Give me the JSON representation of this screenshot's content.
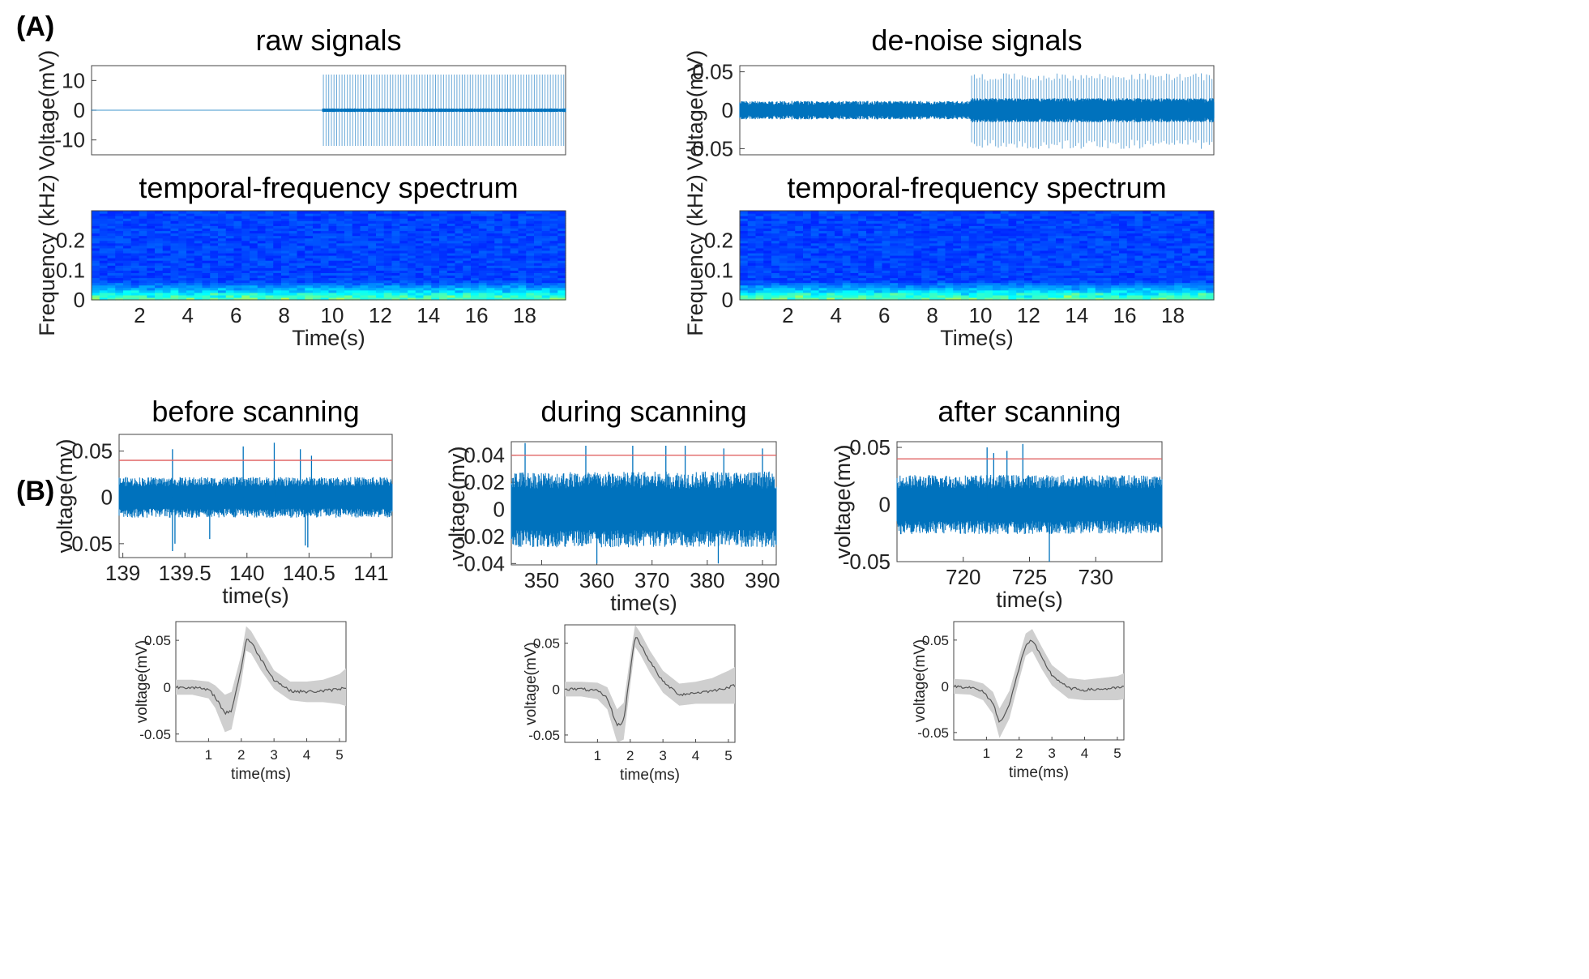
{
  "panel_labels": [
    "(A)",
    "(B)"
  ],
  "colors": {
    "signal": "#0072BD",
    "signal_light": "#6aa9d8",
    "threshold": "#e06666",
    "mean_waveform": "#555555",
    "waveform_band": "#cfcfcf",
    "axes": "#444444"
  },
  "chart_data": [
    {
      "type": "line",
      "title": "raw signals",
      "xlabel": "",
      "ylabel": "Voltage(mV)",
      "xlim": [
        0,
        19.7
      ],
      "ylim": [
        -15,
        15
      ],
      "yticks": [
        10,
        0,
        -10
      ],
      "ytick_labels": [
        "10",
        "0",
        "-10"
      ],
      "xticks": [],
      "series": [
        {
          "x": [
            0,
            9.6,
            9.6,
            19.7
          ],
          "amplitude_mV": [
            0,
            0,
            12,
            12
          ],
          "spike_rate_per_s": 9
        }
      ],
      "grid": false
    },
    {
      "type": "heatmap",
      "title": "temporal-frequency spectrum",
      "xlabel": "Time(s)",
      "ylabel": "Frequency (kHz)",
      "xlim": [
        0,
        19.7
      ],
      "ylim": [
        0,
        0.3
      ],
      "xticks": [
        2,
        4,
        6,
        8,
        10,
        12,
        14,
        16,
        18
      ],
      "xtick_labels": [
        "2",
        "4",
        "6",
        "8",
        "10",
        "12",
        "14",
        "16",
        "18"
      ],
      "yticks": [
        0.2,
        0.1,
        0
      ],
      "ytick_labels": [
        "0.2",
        "0.1",
        "0"
      ],
      "colormap": "jet",
      "grid": false
    },
    {
      "type": "line",
      "title": "de-noise signals",
      "xlabel": "",
      "ylabel": "Voltage(mV)",
      "xlim": [
        0,
        19.7
      ],
      "ylim": [
        -0.058,
        0.058
      ],
      "yticks": [
        0.05,
        0,
        -0.05
      ],
      "ytick_labels": [
        "0.05",
        "0",
        "-0.05"
      ],
      "xticks": [],
      "series": [
        {
          "x": [
            0,
            9.6,
            9.6,
            19.7
          ],
          "amplitude_mV": [
            0.012,
            0.012,
            0.048,
            0.048
          ],
          "spike_rate_per_s": 9
        }
      ],
      "grid": false
    },
    {
      "type": "heatmap",
      "title": "temporal-frequency spectrum",
      "xlabel": "Time(s)",
      "ylabel": "Frequency (kHz)",
      "xlim": [
        0,
        19.7
      ],
      "ylim": [
        0,
        0.3
      ],
      "xticks": [
        2,
        4,
        6,
        8,
        10,
        12,
        14,
        16,
        18
      ],
      "xtick_labels": [
        "2",
        "4",
        "6",
        "8",
        "10",
        "12",
        "14",
        "16",
        "18"
      ],
      "yticks": [
        0.2,
        0.1,
        0
      ],
      "ytick_labels": [
        "0.2",
        "0.1",
        "0"
      ],
      "colormap": "jet",
      "grid": false
    },
    {
      "type": "line",
      "title": "before scanning",
      "xlabel": "time(s)",
      "ylabel": "voltage(mv)",
      "xlim": [
        138.97,
        141.17
      ],
      "ylim": [
        -0.065,
        0.068
      ],
      "xticks": [
        139,
        139.5,
        140,
        140.5,
        141
      ],
      "xtick_labels": [
        "139",
        "139.5",
        "140",
        "140.5",
        "141"
      ],
      "yticks": [
        0.05,
        0,
        -0.05
      ],
      "ytick_labels": [
        "0.05",
        "0",
        "-0.05"
      ],
      "threshold": 0.04,
      "noise_amplitude": 0.022,
      "spikes": [
        {
          "x": 139.4,
          "y": 0.052
        },
        {
          "x": 139.97,
          "y": 0.055
        },
        {
          "x": 140.22,
          "y": 0.059
        },
        {
          "x": 140.43,
          "y": 0.052
        },
        {
          "x": 140.52,
          "y": 0.045
        },
        {
          "x": 139.42,
          "y": -0.05
        },
        {
          "x": 140.47,
          "y": -0.052
        },
        {
          "x": 140.49,
          "y": -0.054
        },
        {
          "x": 139.7,
          "y": -0.045
        },
        {
          "x": 139.4,
          "y": -0.058
        }
      ],
      "grid": false
    },
    {
      "type": "line",
      "title": "during scanning",
      "xlabel": "time(s)",
      "ylabel": "voltage(mv)",
      "xlim": [
        344.5,
        392.5
      ],
      "ylim": [
        -0.041,
        0.05
      ],
      "xticks": [
        350,
        360,
        370,
        380,
        390
      ],
      "xtick_labels": [
        "350",
        "360",
        "370",
        "380",
        "390"
      ],
      "yticks": [
        0.04,
        0.02,
        0,
        -0.02,
        -0.04
      ],
      "ytick_labels": [
        "0.04",
        "0.02",
        "0",
        "-0.02",
        "-0.04"
      ],
      "threshold": 0.04,
      "noise_amplitude": 0.028,
      "spikes": [
        {
          "x": 347,
          "y": 0.049
        },
        {
          "x": 358,
          "y": 0.047
        },
        {
          "x": 366.5,
          "y": 0.047
        },
        {
          "x": 372.5,
          "y": 0.047
        },
        {
          "x": 376,
          "y": 0.047
        },
        {
          "x": 383,
          "y": 0.045
        },
        {
          "x": 390,
          "y": 0.045
        },
        {
          "x": 360,
          "y": -0.04
        },
        {
          "x": 382,
          "y": -0.04
        }
      ],
      "grid": false
    },
    {
      "type": "line",
      "title": "after scanning",
      "xlabel": "time(s)",
      "ylabel": "voltage(mv)",
      "xlim": [
        715,
        735
      ],
      "ylim": [
        -0.05,
        0.055
      ],
      "xticks": [
        720,
        725,
        730
      ],
      "xtick_labels": [
        "720",
        "725",
        "730"
      ],
      "yticks": [
        0.05,
        0,
        -0.05
      ],
      "ytick_labels": [
        "0.05",
        "0",
        "-0.05"
      ],
      "threshold": 0.04,
      "noise_amplitude": 0.026,
      "spikes": [
        {
          "x": 721.8,
          "y": 0.05
        },
        {
          "x": 722.3,
          "y": 0.045
        },
        {
          "x": 723.3,
          "y": 0.047
        },
        {
          "x": 724.5,
          "y": 0.053
        },
        {
          "x": 726.5,
          "y": -0.05
        }
      ],
      "grid": false
    },
    {
      "type": "line",
      "title": "",
      "xlabel": "time(ms)",
      "ylabel": "voltage(mV)",
      "xlim": [
        0,
        5.2
      ],
      "ylim": [
        -0.058,
        0.07
      ],
      "xticks": [
        1,
        2,
        3,
        4,
        5
      ],
      "xtick_labels": [
        "1",
        "2",
        "3",
        "4",
        "5"
      ],
      "yticks": [
        0.05,
        0,
        -0.05
      ],
      "ytick_labels": [
        "0.05",
        "0",
        "-0.05"
      ],
      "x": [
        0,
        0.5,
        1,
        1.2,
        1.5,
        1.7,
        2,
        2.15,
        2.3,
        2.6,
        3,
        3.5,
        4,
        4.5,
        5,
        5.2
      ],
      "mean": [
        0,
        0,
        -0.003,
        -0.01,
        -0.028,
        -0.025,
        0.02,
        0.052,
        0.048,
        0.03,
        0.008,
        -0.004,
        -0.005,
        -0.004,
        -0.002,
        0
      ],
      "std": [
        0.008,
        0.008,
        0.009,
        0.012,
        0.02,
        0.02,
        0.015,
        0.013,
        0.012,
        0.012,
        0.01,
        0.01,
        0.011,
        0.012,
        0.016,
        0.02
      ],
      "grid": false
    },
    {
      "type": "line",
      "title": "",
      "xlabel": "time(ms)",
      "ylabel": "voltage(mV)",
      "xlim": [
        0,
        5.2
      ],
      "ylim": [
        -0.058,
        0.07
      ],
      "xticks": [
        1,
        2,
        3,
        4,
        5
      ],
      "xtick_labels": [
        "1",
        "2",
        "3",
        "4",
        "5"
      ],
      "yticks": [
        0.05,
        0,
        -0.05
      ],
      "ytick_labels": [
        "0.05",
        "0",
        "-0.05"
      ],
      "x": [
        0,
        0.5,
        1,
        1.3,
        1.6,
        1.8,
        2,
        2.15,
        2.3,
        2.6,
        3,
        3.5,
        4,
        4.5,
        5,
        5.2
      ],
      "mean": [
        0,
        0,
        -0.002,
        -0.01,
        -0.04,
        -0.035,
        0.02,
        0.058,
        0.05,
        0.03,
        0.008,
        -0.006,
        -0.004,
        -0.002,
        0.002,
        0.004
      ],
      "std": [
        0.008,
        0.008,
        0.009,
        0.012,
        0.018,
        0.02,
        0.016,
        0.012,
        0.012,
        0.012,
        0.012,
        0.012,
        0.012,
        0.014,
        0.018,
        0.02
      ],
      "grid": false
    },
    {
      "type": "line",
      "title": "",
      "xlabel": "time(ms)",
      "ylabel": "voltage(mV)",
      "xlim": [
        0,
        5.2
      ],
      "ylim": [
        -0.058,
        0.07
      ],
      "xticks": [
        1,
        2,
        3,
        4,
        5
      ],
      "xtick_labels": [
        "1",
        "2",
        "3",
        "4",
        "5"
      ],
      "yticks": [
        0.05,
        0,
        -0.05
      ],
      "ytick_labels": [
        "0.05",
        "0",
        "-0.05"
      ],
      "x": [
        0,
        0.5,
        0.9,
        1.2,
        1.4,
        1.7,
        2,
        2.2,
        2.4,
        2.7,
        3,
        3.5,
        4,
        4.5,
        5,
        5.2
      ],
      "mean": [
        0,
        -0.001,
        -0.006,
        -0.018,
        -0.04,
        -0.02,
        0.02,
        0.045,
        0.05,
        0.03,
        0.012,
        -0.002,
        -0.004,
        -0.003,
        -0.002,
        0
      ],
      "std": [
        0.008,
        0.008,
        0.009,
        0.012,
        0.016,
        0.015,
        0.013,
        0.012,
        0.012,
        0.012,
        0.011,
        0.011,
        0.011,
        0.012,
        0.013,
        0.014
      ],
      "grid": false
    }
  ]
}
